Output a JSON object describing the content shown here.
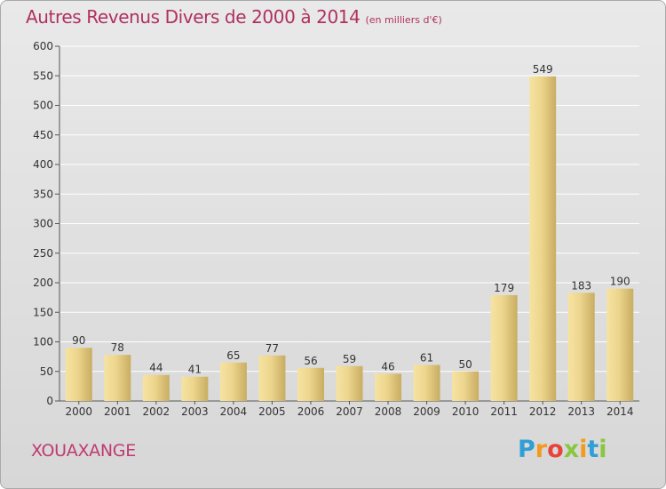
{
  "header": {
    "title": "Autres Revenus Divers de 2000 à 2014",
    "subtitle": "(en milliers d'€)"
  },
  "footer": {
    "commune": "XOUAXANGE",
    "brand_letters": [
      {
        "ch": "P",
        "color": "#2f9fd6"
      },
      {
        "ch": "r",
        "color": "#f29b1d"
      },
      {
        "ch": "o",
        "color": "#e8433a"
      },
      {
        "ch": "x",
        "color": "#8ac640"
      },
      {
        "ch": "i",
        "color": "#f29b1d"
      },
      {
        "ch": "t",
        "color": "#2f9fd6"
      },
      {
        "ch": "i",
        "color": "#8ac640"
      }
    ]
  },
  "chart_data": {
    "type": "bar",
    "title": "Autres Revenus Divers de 2000 à 2014",
    "subtitle": "(en milliers d'€)",
    "xlabel": "",
    "ylabel": "",
    "categories": [
      "2000",
      "2001",
      "2002",
      "2003",
      "2004",
      "2005",
      "2006",
      "2007",
      "2008",
      "2009",
      "2010",
      "2011",
      "2012",
      "2013",
      "2014"
    ],
    "values": [
      90,
      78,
      44,
      41,
      65,
      77,
      56,
      59,
      46,
      61,
      50,
      179,
      549,
      183,
      190
    ],
    "ylim": [
      0,
      600
    ],
    "yticks": [
      0,
      50,
      100,
      150,
      200,
      250,
      300,
      350,
      400,
      450,
      500,
      550,
      600
    ],
    "grid": true,
    "bar_color": "#e8cf84",
    "bar_color_light": "#f7e6a8",
    "bar_color_dark": "#c9ad5f"
  }
}
